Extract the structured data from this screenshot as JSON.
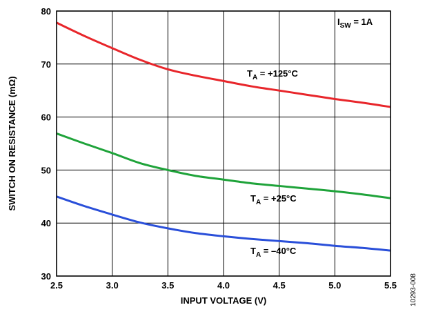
{
  "chart_data": {
    "type": "line",
    "xlabel": "INPUT VOLTAGE (V)",
    "ylabel": "SWITCH ON RESISTANCE (mΩ)",
    "xlim": [
      2.5,
      5.5
    ],
    "ylim": [
      30,
      80
    ],
    "xticks": [
      "2.5",
      "3.0",
      "3.5",
      "4.0",
      "4.5",
      "5.0",
      "5.5"
    ],
    "yticks": [
      "30",
      "40",
      "50",
      "60",
      "70",
      "80"
    ],
    "grid": true,
    "series": [
      {
        "name": "+125°C",
        "color": "#e8262b",
        "x": [
          2.5,
          2.75,
          3.0,
          3.25,
          3.5,
          3.75,
          4.0,
          4.25,
          4.5,
          4.75,
          5.0,
          5.25,
          5.5
        ],
        "y": [
          77.8,
          75.3,
          73.0,
          70.8,
          69.0,
          67.8,
          66.8,
          65.8,
          65.0,
          64.2,
          63.4,
          62.7,
          61.9
        ]
      },
      {
        "name": "+25°C",
        "color": "#1fa33a",
        "x": [
          2.5,
          2.75,
          3.0,
          3.25,
          3.5,
          3.75,
          4.0,
          4.25,
          4.5,
          4.75,
          5.0,
          5.25,
          5.5
        ],
        "y": [
          56.9,
          55.0,
          53.2,
          51.3,
          50.0,
          48.9,
          48.2,
          47.5,
          47.0,
          46.5,
          46.0,
          45.4,
          44.7
        ]
      },
      {
        "name": "−40°C",
        "color": "#2a4fd9",
        "x": [
          2.5,
          2.75,
          3.0,
          3.25,
          3.5,
          3.75,
          4.0,
          4.25,
          4.5,
          4.75,
          5.0,
          5.25,
          5.5
        ],
        "y": [
          45.0,
          43.2,
          41.6,
          40.1,
          39.0,
          38.1,
          37.5,
          37.0,
          36.6,
          36.2,
          35.7,
          35.3,
          34.8
        ]
      }
    ],
    "annotations": [
      {
        "main": "I",
        "sub": "SW",
        "rest": " = 1A"
      },
      {
        "main": "T",
        "sub": "A",
        "rest": " = +125°C"
      },
      {
        "main": "T",
        "sub": "A",
        "rest": " = +25°C"
      },
      {
        "main": "T",
        "sub": "A",
        "rest": " = –40°C"
      }
    ],
    "figure_id": "10293-008"
  }
}
